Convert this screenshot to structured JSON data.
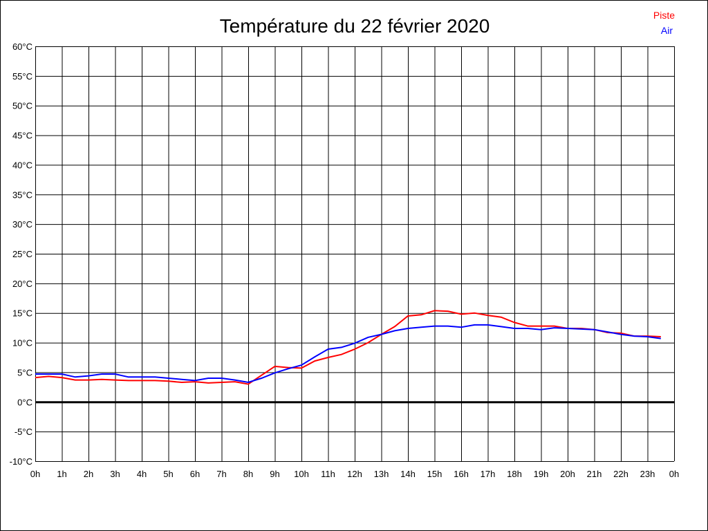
{
  "chart_data": {
    "type": "line",
    "title": "Température du 22 février 2020",
    "xlabel": "",
    "ylabel": "",
    "ylim": [
      -10,
      60
    ],
    "xlim": [
      0,
      24
    ],
    "grid": true,
    "legend_position": "top-right",
    "y_ticks": [
      "60°C",
      "55°C",
      "50°C",
      "45°C",
      "40°C",
      "35°C",
      "30°C",
      "25°C",
      "20°C",
      "15°C",
      "10°C",
      "5°C",
      "0°C",
      "-5°C",
      "-10°C"
    ],
    "y_tick_values": [
      60,
      55,
      50,
      45,
      40,
      35,
      30,
      25,
      20,
      15,
      10,
      5,
      0,
      -5,
      -10
    ],
    "x_ticks": [
      "0h",
      "1h",
      "2h",
      "3h",
      "4h",
      "5h",
      "6h",
      "7h",
      "8h",
      "9h",
      "10h",
      "11h",
      "12h",
      "13h",
      "14h",
      "15h",
      "16h",
      "17h",
      "18h",
      "19h",
      "20h",
      "21h",
      "22h",
      "23h",
      "0h"
    ],
    "x": [
      0,
      0.5,
      1,
      1.5,
      2,
      2.5,
      3,
      3.5,
      4,
      4.5,
      5,
      5.5,
      6,
      6.5,
      7,
      7.5,
      8,
      8.5,
      9,
      9.5,
      10,
      10.5,
      11,
      11.5,
      12,
      12.5,
      13,
      13.5,
      14,
      14.5,
      15,
      15.5,
      16,
      16.5,
      17,
      17.5,
      18,
      18.5,
      19,
      19.5,
      20,
      20.5,
      21,
      21.5,
      22,
      22.5,
      23,
      23.5
    ],
    "series": [
      {
        "name": "Piste",
        "color": "#ff0000",
        "values": [
          4.1,
          4.3,
          4.1,
          3.7,
          3.7,
          3.8,
          3.7,
          3.6,
          3.6,
          3.6,
          3.5,
          3.3,
          3.4,
          3.2,
          3.3,
          3.4,
          3.0,
          4.5,
          6.0,
          5.8,
          5.7,
          6.9,
          7.5,
          8.0,
          8.9,
          10.0,
          11.4,
          12.7,
          14.5,
          14.7,
          15.4,
          15.3,
          14.8,
          15.0,
          14.6,
          14.3,
          13.4,
          12.8,
          12.8,
          12.8,
          12.4,
          12.4,
          12.2,
          11.7,
          11.6,
          11.1,
          11.1,
          11.0
        ]
      },
      {
        "name": "Air",
        "color": "#0000ff",
        "values": [
          4.7,
          4.7,
          4.7,
          4.2,
          4.4,
          4.7,
          4.7,
          4.2,
          4.2,
          4.2,
          4.0,
          3.8,
          3.6,
          4.0,
          4.0,
          3.7,
          3.3,
          4.0,
          4.9,
          5.6,
          6.2,
          7.6,
          8.9,
          9.2,
          9.9,
          10.9,
          11.4,
          12.0,
          12.4,
          12.6,
          12.8,
          12.8,
          12.6,
          13.0,
          13.0,
          12.7,
          12.4,
          12.4,
          12.2,
          12.5,
          12.4,
          12.3,
          12.2,
          11.8,
          11.4,
          11.1,
          11.0,
          10.7
        ]
      }
    ]
  }
}
